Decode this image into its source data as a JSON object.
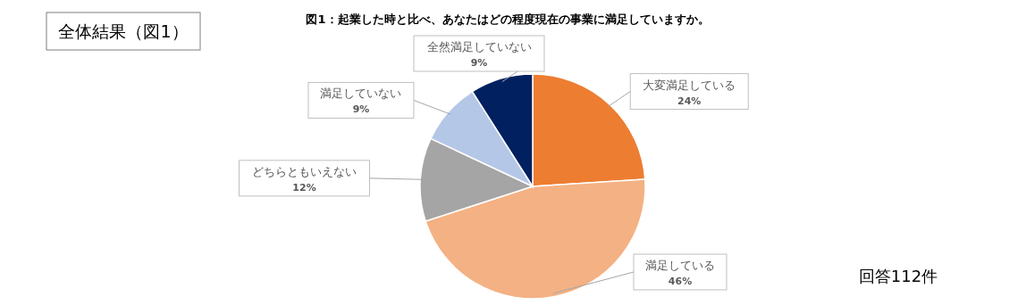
{
  "chart_data": {
    "type": "pie",
    "title": "図1：起業した時と比べ、あなたはどの程度現在の事業に満足していますか。",
    "categories": [
      "大変満足している",
      "満足している",
      "どちらともいえない",
      "満足していない",
      "全然満足していない"
    ],
    "values": [
      24,
      46,
      12,
      9,
      9
    ],
    "colors": [
      "#ed7d31",
      "#f4b183",
      "#a5a5a5",
      "#b4c7e7",
      "#002060"
    ],
    "value_labels": [
      "24%",
      "46%",
      "12%",
      "9%",
      "9%"
    ],
    "annotations": [
      "全体結果（図1）",
      "回答112件"
    ]
  }
}
